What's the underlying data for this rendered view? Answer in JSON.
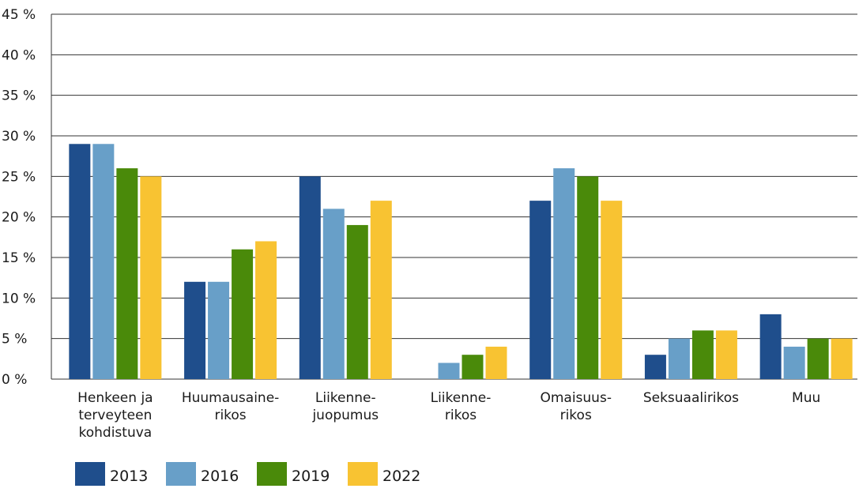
{
  "chart_data": {
    "type": "bar",
    "categories": [
      "Henkeen ja\nterveyteen\nkohdistuva",
      "Huumausaine-\nrikos",
      "Liikenne-\njuopumus",
      "Liikenne-\nrikos",
      "Omaisuus-\nrikos",
      "Seksuaalirikos",
      "Muu"
    ],
    "series": [
      {
        "name": "2013",
        "color": "#1f4e8c",
        "values": [
          29,
          12,
          25,
          null,
          22,
          3,
          8
        ]
      },
      {
        "name": "2016",
        "color": "#689fc8",
        "values": [
          29,
          12,
          21,
          2,
          26,
          5,
          4
        ]
      },
      {
        "name": "2019",
        "color": "#4a8a0a",
        "values": [
          26,
          16,
          19,
          3,
          25,
          6,
          5
        ]
      },
      {
        "name": "2022",
        "color": "#f8c332",
        "values": [
          25,
          17,
          22,
          4,
          22,
          6,
          5
        ]
      }
    ],
    "ylim": [
      0,
      45
    ],
    "yticks": [
      {
        "value": 0,
        "label": "0 %"
      },
      {
        "value": 5,
        "label": "5 %"
      },
      {
        "value": 10,
        "label": "10 %"
      },
      {
        "value": 15,
        "label": "15 %"
      },
      {
        "value": 20,
        "label": "20 %"
      },
      {
        "value": 25,
        "label": "25 %"
      },
      {
        "value": 30,
        "label": "30 %"
      },
      {
        "value": 35,
        "label": "35 %"
      },
      {
        "value": 40,
        "label": "40 %"
      },
      {
        "value": 45,
        "label": "45 %"
      }
    ],
    "grid": true,
    "legend": "bottom"
  }
}
